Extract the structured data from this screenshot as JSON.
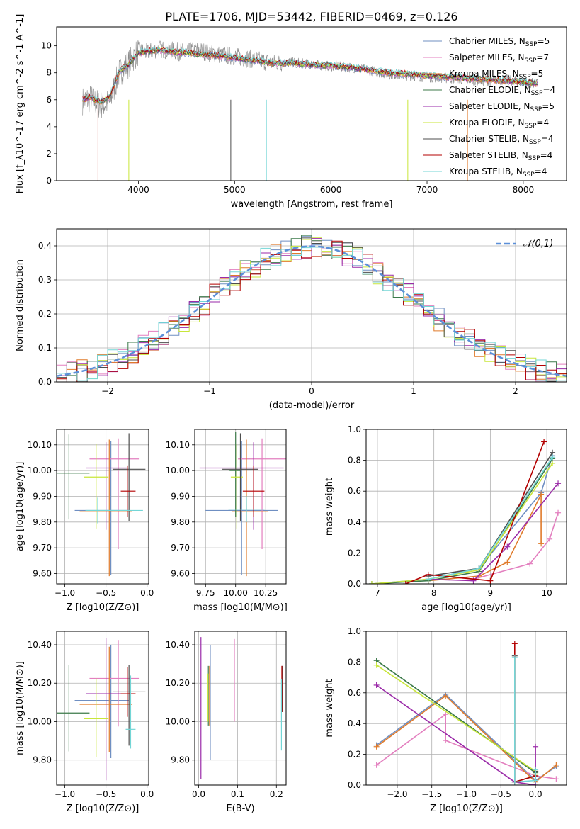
{
  "figure": {
    "title": "PLATE=1706, MJD=53442, FIBERID=0469, z=0.126"
  },
  "legend_entries": [
    {
      "name": "Chabrier MILES",
      "n": "5",
      "color": "#6f8fc2"
    },
    {
      "name": "Salpeter MILES",
      "n": "7",
      "color": "#e37fbf"
    },
    {
      "name": "Kroupa MILES",
      "n": "5",
      "color": "#e07b2b"
    },
    {
      "name": "Chabrier ELODIE",
      "n": "4",
      "color": "#3c7a4a"
    },
    {
      "name": "Salpeter ELODIE",
      "n": "5",
      "color": "#9a2aa8"
    },
    {
      "name": "Kroupa ELODIE",
      "n": "4",
      "color": "#c8e63a"
    },
    {
      "name": "Chabrier STELIB",
      "n": "4",
      "color": "#4d4d4d"
    },
    {
      "name": "Salpeter STELIB",
      "n": "4",
      "color": "#b30000"
    },
    {
      "name": "Kroupa STELIB",
      "n": "4",
      "color": "#73d6d6"
    }
  ],
  "chart_data": [
    {
      "id": "spectrum",
      "type": "line",
      "xlabel": "wavelength [Angstrom, rest frame]",
      "ylabel": "Flux [f_λ10^-17 erg cm^-2 s^-1 A^-1]",
      "xlim": [
        3150,
        8450
      ],
      "ylim": [
        0,
        11.4
      ],
      "xticks": [
        4000,
        5000,
        6000,
        7000,
        8000
      ],
      "yticks": [
        0,
        2,
        4,
        6,
        8,
        10
      ],
      "grid": false,
      "legend": "top-right",
      "data_series": {
        "name": "data",
        "color": "#8a8a8a",
        "x": [
          3420,
          3500,
          3600,
          3700,
          3800,
          3900,
          4000,
          4100,
          4200,
          4300,
          4400,
          4500,
          4600,
          4800,
          5000,
          5200,
          5400,
          5600,
          5800,
          6000,
          6200,
          6400,
          6600,
          6800,
          7000,
          7200,
          7400,
          7600,
          7800,
          8000,
          8150
        ],
        "y": [
          5.9,
          6.1,
          5.6,
          5.8,
          8.0,
          8.7,
          9.6,
          9.5,
          9.8,
          9.7,
          9.6,
          9.5,
          9.7,
          9.4,
          9.2,
          9.0,
          8.7,
          8.8,
          8.6,
          8.5,
          8.4,
          8.2,
          7.9,
          7.8,
          7.7,
          7.6,
          7.5,
          7.4,
          7.5,
          7.3,
          7.2
        ]
      },
      "model_x": [
        3420,
        3500,
        3600,
        3700,
        3800,
        3900,
        4000,
        4100,
        4200,
        4300,
        4400,
        4500,
        4600,
        4800,
        5000,
        5200,
        5400,
        5600,
        5800,
        6000,
        6200,
        6400,
        6600,
        6800,
        7000,
        7200,
        7400,
        7600,
        7800,
        8000,
        8150
      ],
      "model_y": [
        6.0,
        6.2,
        5.8,
        6.2,
        8.1,
        8.6,
        9.5,
        9.6,
        9.7,
        9.6,
        9.5,
        9.5,
        9.4,
        9.3,
        9.1,
        8.9,
        8.7,
        8.7,
        8.6,
        8.5,
        8.4,
        8.2,
        8.0,
        7.9,
        7.8,
        7.7,
        7.6,
        7.5,
        7.4,
        7.3,
        7.2
      ]
    },
    {
      "id": "residuals",
      "type": "step",
      "xlabel": "(data-model)/error",
      "ylabel": "Normed distribution",
      "xlim": [
        -2.5,
        2.5
      ],
      "ylim": [
        0,
        0.45
      ],
      "xticks": [
        -2,
        -1,
        0,
        1,
        2
      ],
      "yticks": [
        0.0,
        0.1,
        0.2,
        0.3,
        0.4
      ],
      "grid": true,
      "legend": "top-right",
      "reference": {
        "name": "𝒩(0,1)",
        "color": "#5b8fd8"
      }
    },
    {
      "id": "age_vs_Z",
      "type": "scatter",
      "xlabel": "Z [log10(Z/Z⊙)]",
      "ylabel": "age  [log10(age/yr)]",
      "xlim": [
        -1.1,
        0.02
      ],
      "ylim": [
        9.56,
        10.16
      ],
      "xticks": [
        -1.0,
        -0.5,
        0.0
      ],
      "yticks": [
        9.6,
        9.7,
        9.8,
        9.9,
        10.0,
        10.1
      ],
      "grid": true,
      "points": [
        {
          "x": -0.44,
          "y": 9.845,
          "xerr": [
            0.44,
            0.22
          ],
          "yerr": [
            0.25,
            0.27
          ]
        },
        {
          "x": -0.35,
          "y": 10.045,
          "xerr": [
            0.35,
            0.25
          ],
          "yerr": [
            0.35,
            0.08
          ]
        },
        {
          "x": -0.46,
          "y": 9.84,
          "xerr": [
            0.36,
            0.28
          ],
          "yerr": [
            0.25,
            0.28
          ]
        },
        {
          "x": -0.95,
          "y": 9.99,
          "xerr": [
            0.2,
            0.25
          ],
          "yerr": [
            0.18,
            0.15
          ]
        },
        {
          "x": -0.5,
          "y": 10.01,
          "xerr": [
            0.24,
            0.26
          ],
          "yerr": [
            0.24,
            0.1
          ]
        },
        {
          "x": -0.62,
          "y": 9.975,
          "xerr": [
            0.15,
            0.15
          ],
          "yerr": [
            0.2,
            0.13
          ]
        },
        {
          "x": -0.22,
          "y": 10.005,
          "xerr": [
            0.2,
            0.2
          ],
          "yerr": [
            0.2,
            0.14
          ]
        },
        {
          "x": -0.24,
          "y": 9.92,
          "xerr": [
            0.08,
            0.1
          ],
          "yerr": [
            0.1,
            0.1
          ]
        },
        {
          "x": -0.6,
          "y": 9.845,
          "xerr": [
            0.15,
            0.55
          ],
          "yerr": [
            0.05,
            0.05
          ]
        }
      ]
    },
    {
      "id": "age_vs_mass",
      "type": "scatter",
      "xlabel": "mass [log10(M/M⊙)]",
      "ylabel": "",
      "xlim": [
        9.66,
        10.42
      ],
      "ylim": [
        9.56,
        10.16
      ],
      "xticks": [
        9.75,
        10.0,
        10.25
      ],
      "yticks": [
        9.6,
        9.7,
        9.8,
        9.9,
        10.0,
        10.1
      ],
      "grid": true,
      "points": [
        {
          "x": 10.05,
          "y": 9.845,
          "xerr": [
            0.3,
            0.3
          ],
          "yerr": [
            0.25,
            0.27
          ]
        },
        {
          "x": 10.22,
          "y": 10.045,
          "xerr": [
            0.2,
            0.2
          ],
          "yerr": [
            0.35,
            0.08
          ]
        },
        {
          "x": 10.09,
          "y": 9.84,
          "xerr": [
            0.12,
            0.18
          ],
          "yerr": [
            0.25,
            0.28
          ]
        },
        {
          "x": 10.0,
          "y": 10.0,
          "xerr": [
            0.05,
            0.05
          ],
          "yerr": [
            0.18,
            0.15
          ]
        },
        {
          "x": 10.15,
          "y": 10.01,
          "xerr": [
            0.45,
            0.25
          ],
          "yerr": [
            0.24,
            0.1
          ]
        },
        {
          "x": 10.01,
          "y": 9.975,
          "xerr": [
            0.05,
            0.05
          ],
          "yerr": [
            0.2,
            0.13
          ]
        },
        {
          "x": 10.04,
          "y": 10.005,
          "xerr": [
            0.15,
            0.15
          ],
          "yerr": [
            0.2,
            0.14
          ]
        },
        {
          "x": 10.15,
          "y": 9.92,
          "xerr": [
            0.09,
            0.09
          ],
          "yerr": [
            0.1,
            0.1
          ]
        },
        {
          "x": 10.09,
          "y": 9.85,
          "xerr": [
            0.15,
            0.15
          ],
          "yerr": [
            0.05,
            0.05
          ]
        }
      ]
    },
    {
      "id": "weight_vs_age",
      "type": "line",
      "xlabel": "age  [log10(age/yr)]",
      "ylabel": "mass weight",
      "xlim": [
        6.8,
        10.35
      ],
      "ylim": [
        0,
        1.0
      ],
      "xticks": [
        7,
        8,
        9,
        10
      ],
      "yticks": [
        0.0,
        0.2,
        0.4,
        0.6,
        0.8,
        1.0
      ],
      "grid": true,
      "series": [
        {
          "x": [
            6.9,
            7.9,
            8.8,
            9.9,
            10.1
          ],
          "y": [
            0.0,
            0.03,
            0.1,
            0.59,
            0.83
          ]
        },
        {
          "x": [
            7.9,
            8.7,
            9.7,
            10.05,
            10.2
          ],
          "y": [
            0.06,
            0.03,
            0.13,
            0.29,
            0.46
          ]
        },
        {
          "x": [
            7.9,
            8.8,
            9.3,
            9.9,
            9.9
          ],
          "y": [
            0.02,
            0.05,
            0.14,
            0.58,
            0.26
          ]
        },
        {
          "x": [
            6.9,
            7.9,
            8.8,
            10.1
          ],
          "y": [
            0.0,
            0.02,
            0.08,
            0.81
          ]
        },
        {
          "x": [
            7.9,
            8.7,
            9.3,
            10.2
          ],
          "y": [
            0.03,
            0.02,
            0.24,
            0.65
          ]
        },
        {
          "x": [
            6.9,
            7.9,
            8.8,
            10.1
          ],
          "y": [
            0.0,
            0.03,
            0.09,
            0.78
          ]
        },
        {
          "x": [
            7.9,
            8.8,
            10.1
          ],
          "y": [
            0.05,
            0.1,
            0.85
          ]
        },
        {
          "x": [
            7.5,
            7.9,
            9.0,
            9.95
          ],
          "y": [
            0.0,
            0.06,
            0.02,
            0.92
          ]
        },
        {
          "x": [
            7.9,
            8.8,
            10.1
          ],
          "y": [
            0.03,
            0.1,
            0.82
          ]
        }
      ]
    },
    {
      "id": "mass_vs_Z",
      "type": "scatter",
      "xlabel": "Z [log10(Z/Z⊙)]",
      "ylabel": "mass [log10(M/M⊙)]",
      "xlim": [
        -1.1,
        0.02
      ],
      "ylim": [
        9.67,
        10.47
      ],
      "xticks": [
        -1.0,
        -0.5,
        0.0
      ],
      "yticks": [
        9.8,
        10.0,
        10.2,
        10.4
      ],
      "grid": true,
      "points": [
        {
          "x": -0.44,
          "y": 10.11,
          "xerr": [
            0.44,
            0.22
          ],
          "yerr": [
            0.3,
            0.29
          ]
        },
        {
          "x": -0.35,
          "y": 10.225,
          "xerr": [
            0.35,
            0.25
          ],
          "yerr": [
            0.25,
            0.2
          ]
        },
        {
          "x": -0.46,
          "y": 10.09,
          "xerr": [
            0.36,
            0.28
          ],
          "yerr": [
            0.25,
            0.3
          ]
        },
        {
          "x": -0.95,
          "y": 10.045,
          "xerr": [
            0.2,
            0.25
          ],
          "yerr": [
            0.2,
            0.25
          ]
        },
        {
          "x": -0.5,
          "y": 10.145,
          "xerr": [
            0.24,
            0.26
          ],
          "yerr": [
            0.45,
            0.29
          ]
        },
        {
          "x": -0.62,
          "y": 10.015,
          "xerr": [
            0.15,
            0.15
          ],
          "yerr": [
            0.2,
            0.21
          ]
        },
        {
          "x": -0.22,
          "y": 10.155,
          "xerr": [
            0.2,
            0.2
          ],
          "yerr": [
            0.28,
            0.14
          ]
        },
        {
          "x": -0.24,
          "y": 10.145,
          "xerr": [
            0.08,
            0.1
          ],
          "yerr": [
            0.12,
            0.14
          ]
        },
        {
          "x": -0.2,
          "y": 9.96,
          "xerr": [
            0.06,
            0.06
          ],
          "yerr": [
            0.1,
            0.28
          ]
        }
      ]
    },
    {
      "id": "mass_vs_ebv",
      "type": "scatter",
      "xlabel": "E(B-V)",
      "ylabel": "",
      "xlim": [
        -0.01,
        0.225
      ],
      "ylim": [
        9.67,
        10.47
      ],
      "xticks": [
        0.0,
        0.1,
        0.2
      ],
      "yticks": [
        9.8,
        10.0,
        10.2,
        10.4
      ],
      "grid": true,
      "points": [
        {
          "x": 0.03,
          "y": 10.1,
          "yerr": [
            0.3,
            0.3
          ]
        },
        {
          "x": 0.092,
          "y": 10.2,
          "yerr": [
            0.2,
            0.23
          ]
        },
        {
          "x": 0.028,
          "y": 10.1,
          "yerr": [
            0.12,
            0.19
          ]
        },
        {
          "x": 0.025,
          "y": 10.1,
          "yerr": [
            0.12,
            0.19
          ]
        },
        {
          "x": 0.006,
          "y": 10.12,
          "yerr": [
            0.42,
            0.32
          ]
        },
        {
          "x": 0.024,
          "y": 10.1,
          "yerr": [
            0.1,
            0.15
          ]
        },
        {
          "x": 0.215,
          "y": 10.15,
          "yerr": [
            0.1,
            0.14
          ]
        },
        {
          "x": 0.214,
          "y": 10.15,
          "yerr": [
            0.1,
            0.14
          ]
        },
        {
          "x": 0.213,
          "y": 10.0,
          "yerr": [
            0.15,
            0.22
          ]
        }
      ]
    },
    {
      "id": "weight_vs_Z",
      "type": "line",
      "xlabel": "Z [log10(Z/Z⊙)]",
      "ylabel": "mass weight",
      "xlim": [
        -2.45,
        0.45
      ],
      "ylim": [
        0,
        1.0
      ],
      "xticks": [
        -2.0,
        -1.5,
        -1.0,
        -0.5,
        0.0
      ],
      "yticks": [
        0.0,
        0.2,
        0.4,
        0.6,
        0.8,
        1.0
      ],
      "grid": true,
      "series": [
        {
          "x": [
            -2.3,
            -1.3,
            0.0,
            0.3
          ],
          "y": [
            0.26,
            0.59,
            0.03,
            0.12
          ]
        },
        {
          "x": [
            -2.3,
            -1.3,
            -1.3,
            0.0,
            0.3
          ],
          "y": [
            0.13,
            0.46,
            0.29,
            0.06,
            0.04
          ]
        },
        {
          "x": [
            -2.3,
            -1.3,
            0.0,
            0.3
          ],
          "y": [
            0.25,
            0.58,
            0.02,
            0.13
          ]
        },
        {
          "x": [
            -2.3,
            0.0,
            0.0
          ],
          "y": [
            0.81,
            0.08,
            0.06
          ]
        },
        {
          "x": [
            -2.3,
            -0.3,
            0.0,
            0.0
          ],
          "y": [
            0.65,
            0.02,
            0.0,
            0.25
          ]
        },
        {
          "x": [
            -2.3,
            0.0,
            0.0
          ],
          "y": [
            0.78,
            0.09,
            0.07
          ]
        },
        {
          "x": [
            -0.3,
            -0.3,
            0.0,
            0.0
          ],
          "y": [
            0.84,
            0.02,
            0.06,
            0.09
          ]
        },
        {
          "x": [
            -0.3,
            -0.3,
            0.0
          ],
          "y": [
            0.92,
            0.02,
            0.06
          ]
        },
        {
          "x": [
            -0.3,
            -0.3,
            0.0,
            0.0
          ],
          "y": [
            0.83,
            0.02,
            0.03,
            0.1
          ]
        }
      ]
    }
  ]
}
